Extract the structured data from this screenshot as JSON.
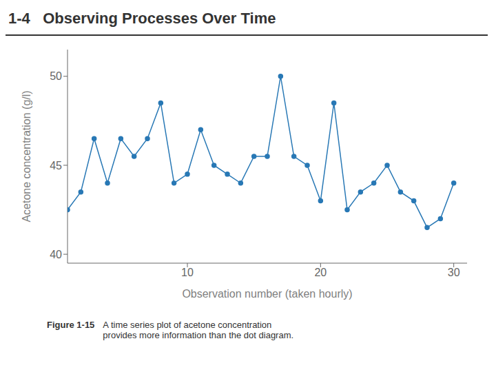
{
  "chart_data": {
    "type": "line",
    "title": "1-4   Observing Processes Over Time",
    "xlabel": "Observation number (taken hourly)",
    "ylabel": "Acetone concentration (g/l)",
    "x": [
      1,
      2,
      3,
      4,
      5,
      6,
      7,
      8,
      9,
      10,
      11,
      12,
      13,
      14,
      15,
      16,
      17,
      18,
      19,
      20,
      21,
      22,
      23,
      24,
      25,
      26,
      27,
      28,
      29,
      30
    ],
    "values": [
      42.5,
      43.5,
      46.5,
      44.0,
      46.5,
      45.5,
      46.5,
      48.5,
      44.0,
      44.5,
      47.0,
      45.0,
      44.5,
      44.0,
      45.5,
      45.5,
      50.0,
      45.5,
      45.0,
      43.0,
      48.5,
      42.5,
      43.5,
      44.0,
      45.0,
      43.5,
      43.0,
      41.5,
      42.0,
      44.0
    ],
    "color": "#2878b5",
    "marker": "circle",
    "xlim": [
      1,
      31
    ],
    "xticks": [
      10,
      20,
      30
    ],
    "ylim": [
      39.5,
      51.5
    ],
    "yticks": [
      40,
      45,
      50
    ],
    "grid": false,
    "annotations": [
      "Figure 1-15",
      "A time series plot of acetone concentration",
      "provides more information than the dot diagram."
    ]
  }
}
